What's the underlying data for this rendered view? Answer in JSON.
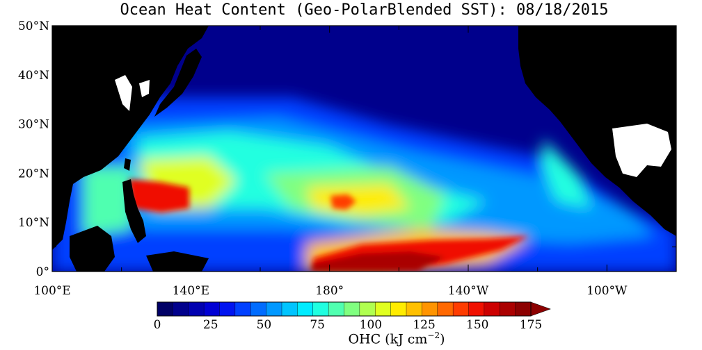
{
  "title": "Ocean Heat Content (Geo-PolarBlended SST): 08/18/2015",
  "map": {
    "lat_labels": [
      "50°N",
      "40°N",
      "30°N",
      "20°N",
      "10°N",
      "0°"
    ],
    "lat_values": [
      50,
      40,
      30,
      20,
      10,
      0
    ],
    "lon_labels": [
      "100°E",
      "140°E",
      "180°",
      "140°W",
      "100°W"
    ],
    "lon_values": [
      100,
      140,
      180,
      220,
      260
    ],
    "lon_range": [
      100,
      280
    ],
    "lat_range": [
      0,
      50
    ],
    "land_color": "#000000",
    "missing_color": "#ffffff"
  },
  "colorbar": {
    "ticks": [
      "0",
      "25",
      "50",
      "75",
      "100",
      "125",
      "150",
      "175"
    ],
    "tick_values": [
      0,
      25,
      50,
      75,
      100,
      125,
      150,
      175
    ],
    "range": [
      0,
      175
    ],
    "title_main": "OHC (kJ cm",
    "title_exp": "−2",
    "title_close": ")",
    "colors": [
      "#000066",
      "#00008c",
      "#0000b0",
      "#0000d4",
      "#0014f0",
      "#0040ff",
      "#006cff",
      "#0098ff",
      "#00c4ff",
      "#00ecff",
      "#20ffe0",
      "#50ffb0",
      "#80ff80",
      "#b0ff50",
      "#e0ff20",
      "#ffec00",
      "#ffc000",
      "#ff9400",
      "#ff6800",
      "#ff3c00",
      "#f01000",
      "#cc0000",
      "#aa0000",
      "#8c0000"
    ]
  }
}
